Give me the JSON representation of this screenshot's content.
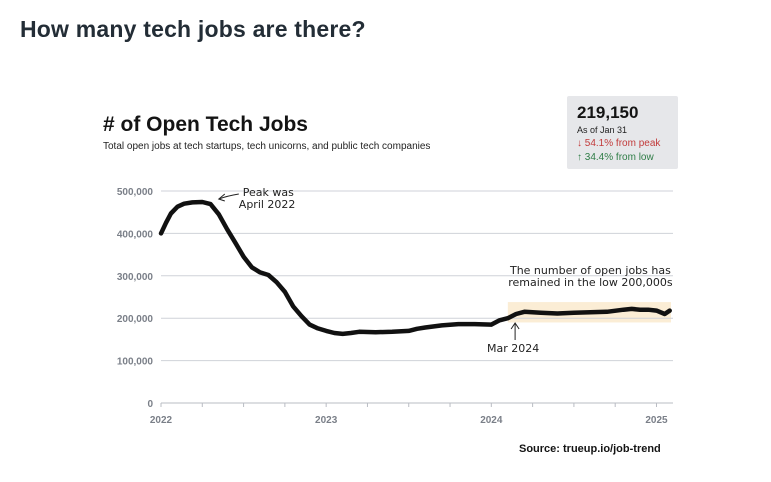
{
  "page_heading": "How many tech jobs are there?",
  "stat_card": {
    "value": "219,150",
    "as_of": "As of Jan 31",
    "down": "↓ 54.1% from peak",
    "up": "↑ 34.4% from low"
  },
  "source": "Source: trueup.io/job-trend",
  "colors": {
    "line": "#111111",
    "highlight": "#fbedd5",
    "grid": "#cfd2d8",
    "tick": "#7a7f88",
    "card": "#e6e7ea"
  },
  "chart_data": {
    "type": "line",
    "title": "# of Open Tech Jobs",
    "subtitle": "Total open jobs at tech startups, tech unicorns, and public tech companies",
    "xlabel": "",
    "ylabel": "",
    "ylim": [
      0,
      500000
    ],
    "xlim": [
      2022.0,
      2025.1
    ],
    "grid": true,
    "y_ticks": [
      0,
      100000,
      200000,
      300000,
      400000,
      500000
    ],
    "y_tick_labels": [
      "0",
      "100,000",
      "200,000",
      "300,000",
      "400,000",
      "500,000"
    ],
    "x_ticks": [
      2022,
      2023,
      2024,
      2025
    ],
    "x_tick_labels": [
      "2022",
      "2023",
      "2024",
      "2025"
    ],
    "series": [
      {
        "x": [
          2022.0,
          2022.03,
          2022.06,
          2022.1,
          2022.14,
          2022.19,
          2022.25,
          2022.3,
          2022.35,
          2022.4,
          2022.45,
          2022.5,
          2022.55,
          2022.6,
          2022.65,
          2022.7,
          2022.75,
          2022.8,
          2022.85,
          2022.9,
          2022.95,
          2023.0,
          2023.05,
          2023.1,
          2023.15,
          2023.2,
          2023.3,
          2023.4,
          2023.5,
          2023.55,
          2023.6,
          2023.7,
          2023.8,
          2023.9,
          2024.0,
          2024.05,
          2024.1,
          2024.15,
          2024.2,
          2024.3,
          2024.4,
          2024.5,
          2024.6,
          2024.7,
          2024.8,
          2024.85,
          2024.9,
          2024.95,
          2025.0,
          2025.05,
          2025.08
        ],
        "y": [
          400000,
          425000,
          447000,
          463000,
          470000,
          473000,
          474000,
          469000,
          445000,
          410000,
          378000,
          345000,
          320000,
          308000,
          302000,
          285000,
          262000,
          228000,
          205000,
          185000,
          176000,
          170000,
          165000,
          163000,
          165000,
          168000,
          167000,
          168000,
          170000,
          175000,
          178000,
          183000,
          186000,
          186000,
          185000,
          195000,
          200000,
          210000,
          215000,
          213000,
          211000,
          213000,
          214000,
          215000,
          220000,
          222000,
          220000,
          220000,
          218000,
          210000,
          218000
        ]
      }
    ],
    "highlight_band": {
      "x": [
        2024.1,
        2025.1
      ],
      "y": [
        190000,
        238000
      ]
    },
    "annotations": [
      {
        "text": [
          "Peak was",
          "April 2022"
        ],
        "x": 2022.35,
        "y": 474000
      },
      {
        "text": [
          "The number of open jobs has",
          "remained in the low 200,000s"
        ],
        "x": 2024.6,
        "y": 240000
      },
      {
        "text": [
          "Mar 2024"
        ],
        "x": 2024.15,
        "y": 205000
      }
    ]
  }
}
